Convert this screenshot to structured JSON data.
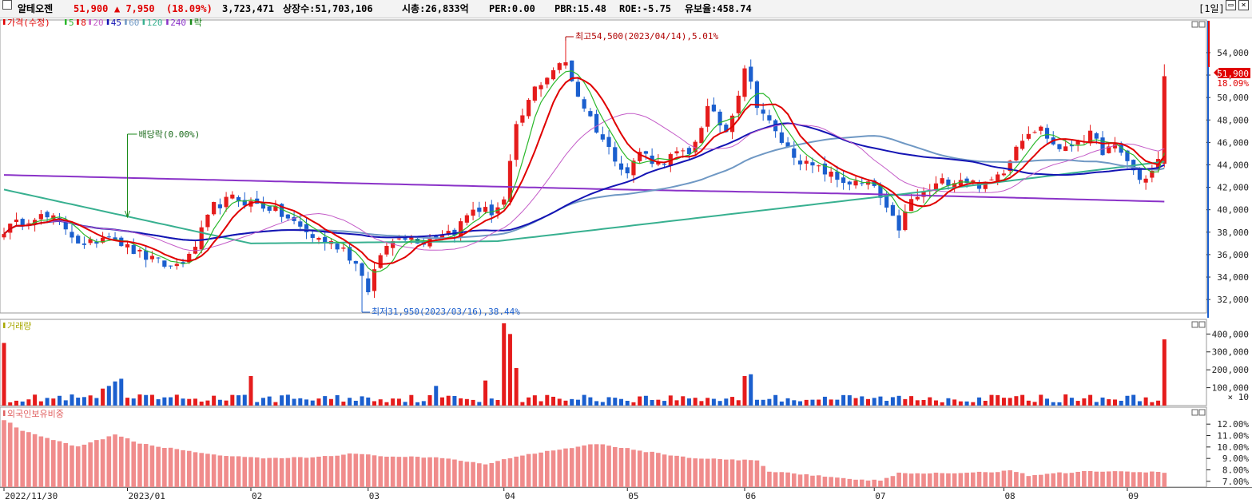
{
  "header": {
    "stock_name": "알테오젠",
    "price": "51,900",
    "change": "▲ 7,950",
    "change_pct": "(18.09%)",
    "volume": "3,723,471",
    "listed_shares": "상장수:51,703,106",
    "market_cap": "시총:26,833억",
    "per": "PER:0.00",
    "pbr": "PBR:15.48",
    "roe": "ROE:-5.75",
    "retention": "유보율:458.74",
    "period": "[1일]"
  },
  "colors": {
    "up": "#e51c1c",
    "down": "#1b5fce",
    "ma5": "#2bb82b",
    "ma8": "#e00000",
    "ma20": "#c45cc8",
    "ma45": "#1414b4",
    "ma60": "#6f98c4",
    "ma120": "#38b090",
    "ma240": "#8a32c8",
    "axis": "#222222",
    "grid": "#e8e8e8"
  },
  "chart_data": [
    {
      "type": "candlestick",
      "name_label": "가격(수정)",
      "legend": [
        {
          "label": "가격(수정)",
          "color": "#e00000"
        },
        {
          "label": "5",
          "color": "#2bb82b"
        },
        {
          "label": "8",
          "color": "#e00000"
        },
        {
          "label": "20",
          "color": "#c45cc8"
        },
        {
          "label": "45",
          "color": "#1414b4"
        },
        {
          "label": "60",
          "color": "#6f98c4"
        },
        {
          "label": "120",
          "color": "#38b090"
        },
        {
          "label": "240",
          "color": "#8a32c8"
        },
        {
          "label": "락",
          "color": "#1a8a1a"
        }
      ],
      "y_ticks": [
        32000,
        34000,
        36000,
        38000,
        40000,
        42000,
        44000,
        46000,
        48000,
        50000,
        52000,
        54000
      ],
      "y_tick_labels": [
        "32,000",
        "34,000",
        "36,000",
        "38,000",
        "40,000",
        "42,000",
        "44,000",
        "46,000",
        "48,000",
        "50,000",
        "52,000",
        "54,000"
      ],
      "ylim": [
        30800,
        56200
      ],
      "x_labels": [
        "2022/11/30",
        "2023/01",
        "02",
        "03",
        "04",
        "05",
        "06",
        "07",
        "08",
        "09"
      ],
      "x_label_index": [
        0,
        20,
        40,
        59,
        81,
        101,
        120,
        141,
        162,
        182
      ],
      "anchors": [
        [
          0,
          38200
        ],
        [
          5,
          39500
        ],
        [
          9,
          39000
        ],
        [
          13,
          36600
        ],
        [
          17,
          38000
        ],
        [
          20,
          36600
        ],
        [
          24,
          35500
        ],
        [
          27,
          34900
        ],
        [
          30,
          35700
        ],
        [
          34,
          40300
        ],
        [
          37,
          41000
        ],
        [
          40,
          40600
        ],
        [
          43,
          40200
        ],
        [
          46,
          39200
        ],
        [
          50,
          37600
        ],
        [
          55,
          36600
        ],
        [
          58,
          34400
        ],
        [
          59,
          32500
        ],
        [
          61,
          36100
        ],
        [
          64,
          37800
        ],
        [
          68,
          37200
        ],
        [
          71,
          38000
        ],
        [
          73,
          38100
        ],
        [
          76,
          40100
        ],
        [
          79,
          39800
        ],
        [
          81,
          40800
        ],
        [
          83,
          47200
        ],
        [
          86,
          50800
        ],
        [
          89,
          52500
        ],
        [
          91,
          53100
        ],
        [
          93,
          50200
        ],
        [
          96,
          47200
        ],
        [
          98,
          45400
        ],
        [
          101,
          43300
        ],
        [
          103,
          45200
        ],
        [
          106,
          44100
        ],
        [
          109,
          45000
        ],
        [
          111,
          44800
        ],
        [
          114,
          49000
        ],
        [
          117,
          47000
        ],
        [
          119,
          50500
        ],
        [
          120,
          52800
        ],
        [
          122,
          49500
        ],
        [
          125,
          46800
        ],
        [
          127,
          45400
        ],
        [
          130,
          44000
        ],
        [
          133,
          43400
        ],
        [
          135,
          42700
        ],
        [
          138,
          42300
        ],
        [
          141,
          42100
        ],
        [
          143,
          39800
        ],
        [
          145,
          38400
        ],
        [
          147,
          40800
        ],
        [
          150,
          41800
        ],
        [
          152,
          42500
        ],
        [
          155,
          42800
        ],
        [
          157,
          42400
        ],
        [
          159,
          42100
        ],
        [
          162,
          43600
        ],
        [
          164,
          45800
        ],
        [
          166,
          47100
        ],
        [
          168,
          47200
        ],
        [
          170,
          45800
        ],
        [
          172,
          45300
        ],
        [
          174,
          46300
        ],
        [
          176,
          46600
        ],
        [
          178,
          45300
        ],
        [
          180,
          45500
        ],
        [
          182,
          44400
        ],
        [
          184,
          42600
        ],
        [
          186,
          43400
        ],
        [
          187,
          44400
        ],
        [
          188,
          51700
        ]
      ],
      "ma_last": {
        "5": 44400,
        "8": 43600,
        "20": 44800,
        "45": 43400,
        "60": 43600,
        "120": 44600,
        "240": 40700
      },
      "max_label": "최고54,500(2023/04/14),5.01%",
      "min_label": "최저31,950(2023/03/16),38.44%",
      "max_index": 91,
      "min_index": 58,
      "dividend_label": "배당락(0.00%)",
      "dividend_index": 20,
      "current_price_label": "51,900",
      "current_pct_label": "18.09%"
    },
    {
      "type": "bar",
      "name_label": "거래량",
      "y_ticks": [
        100000,
        200000,
        300000,
        400000
      ],
      "y_tick_labels": [
        "100,000",
        "200,000",
        "300,000",
        "400,000"
      ],
      "unit_label": "× 10",
      "ylim": [
        0,
        455000
      ],
      "peaks": {
        "0": 350000,
        "16": 95000,
        "17": 110000,
        "18": 135000,
        "19": 150000,
        "40": 165000,
        "70": 110000,
        "78": 140000,
        "81": 460000,
        "82": 400000,
        "83": 210000,
        "120": 165000,
        "121": 175000,
        "188": 370000
      }
    },
    {
      "type": "bar",
      "name_label": "외국인보유비중",
      "y_ticks": [
        7,
        8,
        9,
        10,
        11,
        12
      ],
      "y_tick_labels": [
        "7.00%",
        "8.00%",
        "9.00%",
        "10.00%",
        "11.00%",
        "12.00%"
      ],
      "ylim": [
        6.5,
        13.2
      ],
      "anchors": [
        [
          0,
          12.4
        ],
        [
          3,
          11.4
        ],
        [
          8,
          10.6
        ],
        [
          12,
          10.0
        ],
        [
          18,
          11.1
        ],
        [
          22,
          10.3
        ],
        [
          28,
          9.8
        ],
        [
          36,
          9.2
        ],
        [
          42,
          9.0
        ],
        [
          50,
          9.1
        ],
        [
          56,
          9.4
        ],
        [
          62,
          9.2
        ],
        [
          72,
          9.0
        ],
        [
          78,
          8.5
        ],
        [
          84,
          9.3
        ],
        [
          90,
          9.8
        ],
        [
          96,
          10.3
        ],
        [
          104,
          9.6
        ],
        [
          112,
          9.0
        ],
        [
          122,
          8.8
        ],
        [
          124,
          7.9
        ],
        [
          132,
          7.5
        ],
        [
          138,
          7.1
        ],
        [
          142,
          7.1
        ],
        [
          145,
          7.7
        ],
        [
          152,
          7.7
        ],
        [
          160,
          7.8
        ],
        [
          163,
          8.0
        ],
        [
          166,
          7.5
        ],
        [
          170,
          7.7
        ],
        [
          176,
          7.9
        ],
        [
          188,
          7.8
        ]
      ]
    }
  ]
}
